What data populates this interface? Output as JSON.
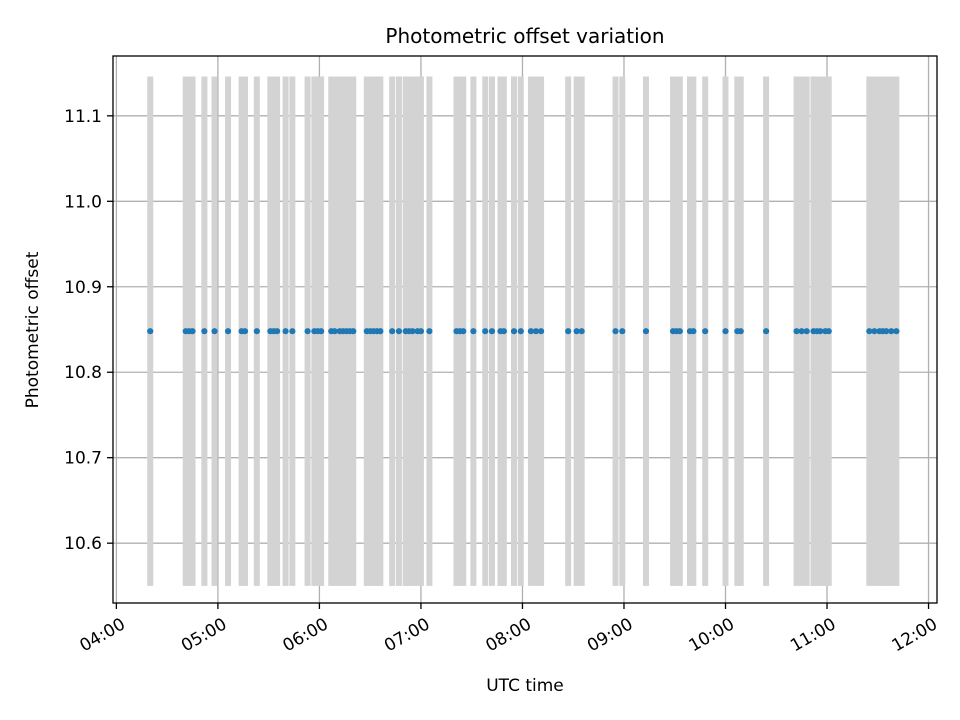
{
  "chart_data": {
    "type": "scatter",
    "title": "Photometric offset variation",
    "xlabel": "UTC time",
    "ylabel": "Photometric offset",
    "x_axis_type": "time",
    "xlim": [
      "03:58",
      "12:05"
    ],
    "ylim": [
      10.53,
      11.17
    ],
    "grid": true,
    "x_ticks": [
      "04:00",
      "05:00",
      "06:00",
      "07:00",
      "08:00",
      "09:00",
      "10:00",
      "11:00",
      "12:00"
    ],
    "y_ticks": [
      "10.6",
      "10.7",
      "10.8",
      "10.9",
      "11.0",
      "11.1"
    ],
    "series": [
      {
        "color": "#1f77b4",
        "errorbar_color": "#d3d3d3",
        "y_value": 10.848,
        "y_error": 0.298,
        "x": [
          "04:20",
          "04:41",
          "04:43",
          "04:45",
          "04:52",
          "04:58",
          "05:06",
          "05:14",
          "05:16",
          "05:23",
          "05:31",
          "05:33",
          "05:35",
          "05:40",
          "05:44",
          "05:53",
          "05:57",
          "05:59",
          "06:01",
          "06:07",
          "06:09",
          "06:12",
          "06:14",
          "06:16",
          "06:18",
          "06:20",
          "06:28",
          "06:30",
          "06:32",
          "06:34",
          "06:36",
          "06:43",
          "06:47",
          "06:51",
          "06:53",
          "06:55",
          "06:58",
          "07:00",
          "07:05",
          "07:21",
          "07:23",
          "07:25",
          "07:31",
          "07:38",
          "07:42",
          "07:47",
          "07:49",
          "07:55",
          "07:59",
          "08:05",
          "08:08",
          "08:11",
          "08:27",
          "08:32",
          "08:35",
          "08:55",
          "08:59",
          "09:13",
          "09:29",
          "09:31",
          "09:33",
          "09:39",
          "09:41",
          "09:48",
          "10:00",
          "10:07",
          "10:09",
          "10:24",
          "10:42",
          "10:45",
          "10:48",
          "10:52",
          "10:54",
          "10:56",
          "10:59",
          "11:01",
          "11:25",
          "11:28",
          "11:31",
          "11:33",
          "11:35",
          "11:38",
          "11:41"
        ]
      }
    ]
  }
}
